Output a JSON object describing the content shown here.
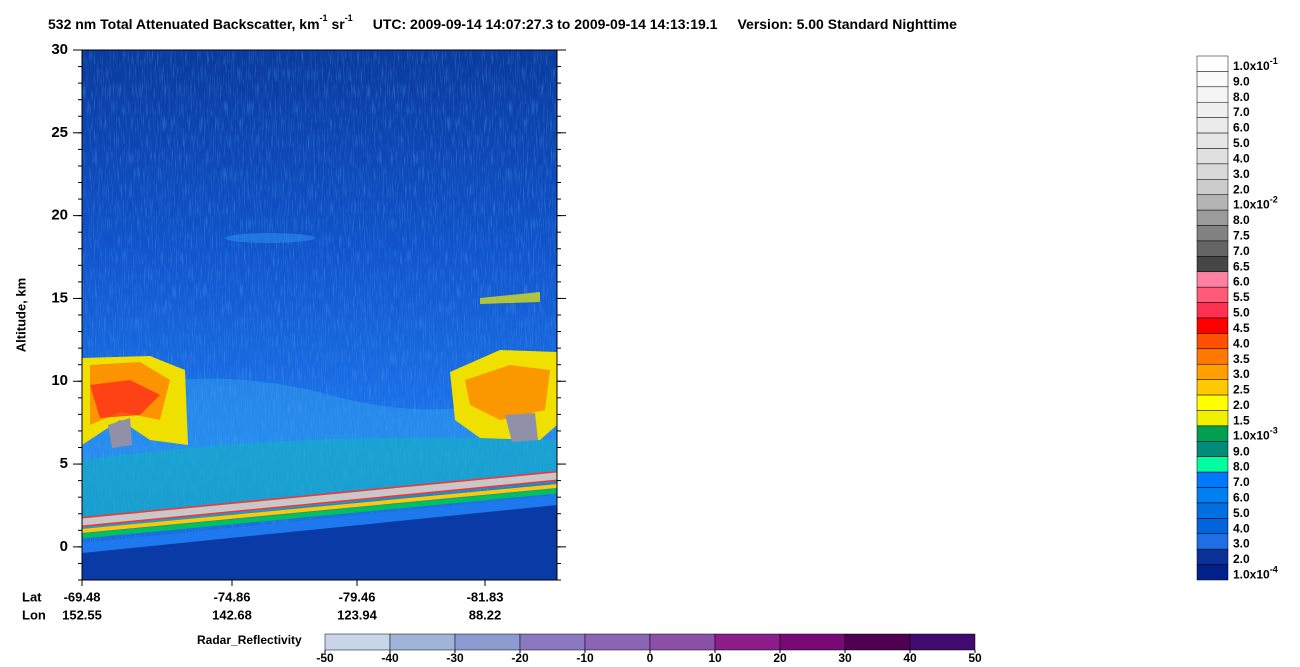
{
  "chart_data": {
    "type": "image",
    "title": {
      "main": "532 nm Total Attenuated Backscatter, km",
      "sup1": "-1",
      "unit2": " sr",
      "sup2": "-1",
      "time": "UTC:  2009-09-14 14:07:27.3  to  2009-09-14 14:13:19.1",
      "version": "Version: 5.00  Standard  Nighttime"
    },
    "ylabel": "Altitude, km",
    "ylim": [
      -2,
      30
    ],
    "yticks": [
      0,
      5,
      10,
      15,
      20,
      25,
      30
    ],
    "x_rows": [
      {
        "name": "Lat",
        "labels": [
          "-69.48",
          "-74.86",
          "-79.46",
          "-81.83"
        ]
      },
      {
        "name": "Lon",
        "labels": [
          "152.55",
          "142.68",
          "123.94",
          "88.22"
        ]
      }
    ],
    "colorbar": {
      "labels": [
        {
          "mantissa": "1.0x10",
          "exponent": "-1"
        },
        "9.0",
        "8.0",
        "7.0",
        "6.0",
        "5.0",
        "4.0",
        "3.0",
        "2.0",
        {
          "mantissa": "1.0x10",
          "exponent": "-2"
        },
        "8.0",
        "7.5",
        "7.0",
        "6.5",
        "6.0",
        "5.5",
        "5.0",
        "4.5",
        "4.0",
        "3.5",
        "3.0",
        "2.5",
        "2.0",
        "1.5",
        {
          "mantissa": "1.0x10",
          "exponent": "-3"
        },
        "9.0",
        "8.0",
        "7.0",
        "6.0",
        "5.0",
        "4.0",
        "3.0",
        "2.0",
        {
          "mantissa": "1.0x10",
          "exponent": "-4"
        }
      ],
      "colors": [
        "#ffffff",
        "#fafafa",
        "#f5f5f5",
        "#f0f0f0",
        "#ebebeb",
        "#e6e6e6",
        "#e0e0e0",
        "#d9d9d9",
        "#cccccc",
        "#b4b4b4",
        "#9b9b9b",
        "#828282",
        "#646464",
        "#464646",
        "#ff80a0",
        "#ff5a78",
        "#ff3050",
        "#ff0000",
        "#ff5000",
        "#ff7800",
        "#ffa000",
        "#ffc800",
        "#ffff00",
        "#f0f000",
        "#00a050",
        "#008c78",
        "#00ffa0",
        "#0078ff",
        "#0080f0",
        "#0070e0",
        "#0064dc",
        "#1e6ee6",
        "#0a3296",
        "#00208c"
      ]
    },
    "radar_bar": {
      "label": "Radar_Reflectivity",
      "ticks": [
        -50,
        -40,
        -30,
        -20,
        -10,
        0,
        10,
        20,
        30,
        40,
        50
      ],
      "colors": [
        "#c8d4e8",
        "#a0b4d8",
        "#8c9cd0",
        "#8c78c0",
        "#8c64b4",
        "#8c50a8",
        "#8c1e8c",
        "#780a78",
        "#500050",
        "#400a6e",
        "#460096"
      ]
    }
  }
}
